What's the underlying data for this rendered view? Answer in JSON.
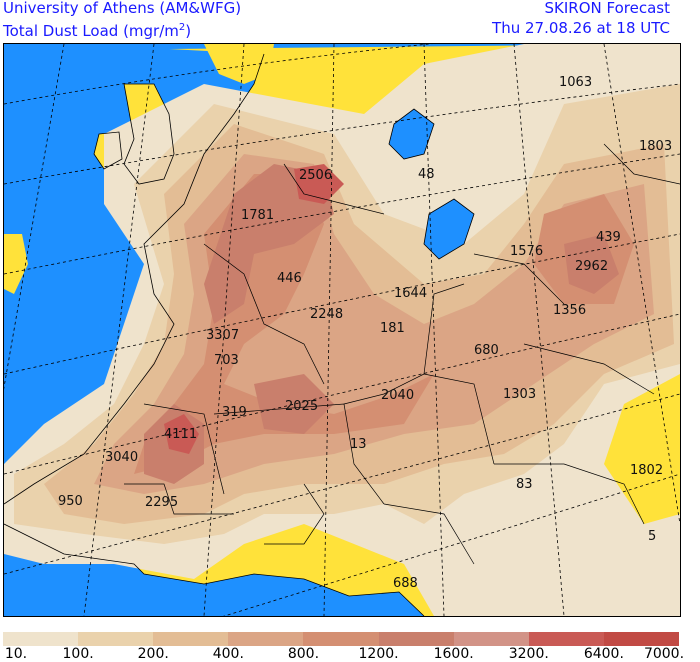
{
  "header": {
    "institution": "University of Athens (AM&WFG)",
    "field_label": "Total Dust Load (mgr/m",
    "field_unit_sup": "2",
    "field_label_close": ")",
    "model": "SKIRON Forecast",
    "valid_time": "Thu 27.08.26 at 18 UTC"
  },
  "colors": {
    "sea": "#1e90ff",
    "land_no_dust": "#ffe23a",
    "borders": "#000000",
    "grid": "#000000"
  },
  "legend": {
    "ticks": [
      "10.",
      "100.",
      "200.",
      "400.",
      "800.",
      "1200.",
      "1600.",
      "3200.",
      "6400.",
      "7000."
    ],
    "colors": [
      "#efe3cc",
      "#ead2ac",
      "#e3bd95",
      "#dba585",
      "#d48f72",
      "#c97f6c",
      "#d29387",
      "#c95a55",
      "#c14a44"
    ]
  },
  "map_values": [
    {
      "name": "value-1063",
      "text": "1063"
    },
    {
      "name": "value-1803",
      "text": "1803"
    },
    {
      "name": "value-2506",
      "text": "2506"
    },
    {
      "name": "value-48",
      "text": "48"
    },
    {
      "name": "value-1781",
      "text": "1781"
    },
    {
      "name": "value-439",
      "text": "439"
    },
    {
      "name": "value-1576",
      "text": "1576"
    },
    {
      "name": "value-2962",
      "text": "2962"
    },
    {
      "name": "value-446",
      "text": "446"
    },
    {
      "name": "value-1644",
      "text": "1644"
    },
    {
      "name": "value-3307",
      "text": "3307"
    },
    {
      "name": "value-2248",
      "text": "2248"
    },
    {
      "name": "value-181",
      "text": "181"
    },
    {
      "name": "value-1356",
      "text": "1356"
    },
    {
      "name": "value-703",
      "text": "703"
    },
    {
      "name": "value-680",
      "text": "680"
    },
    {
      "name": "value-319",
      "text": "319"
    },
    {
      "name": "value-2025",
      "text": "2025"
    },
    {
      "name": "value-2040",
      "text": "2040"
    },
    {
      "name": "value-1303",
      "text": "1303"
    },
    {
      "name": "value-4111",
      "text": "4111"
    },
    {
      "name": "value-13",
      "text": "13"
    },
    {
      "name": "value-3040",
      "text": "3040"
    },
    {
      "name": "value-1802",
      "text": "1802"
    },
    {
      "name": "value-950",
      "text": "950"
    },
    {
      "name": "value-2295",
      "text": "2295"
    },
    {
      "name": "value-83",
      "text": "83"
    },
    {
      "name": "value-5",
      "text": "5"
    },
    {
      "name": "value-688",
      "text": "688"
    }
  ]
}
